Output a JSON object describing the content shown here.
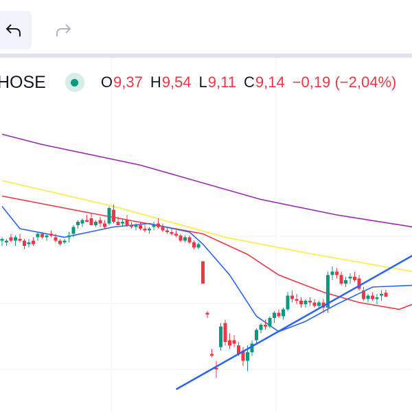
{
  "toolbar": {
    "undo_icon": "undo-arrow-icon",
    "redo_icon": "redo-arrow-icon"
  },
  "legend": {
    "symbol": "HOSE",
    "status_icon": "market-open-dot-icon",
    "open_label": "O",
    "open": "9,37",
    "high_label": "H",
    "high": "9,54",
    "low_label": "L",
    "low": "9,11",
    "close_label": "C",
    "close": "9,14",
    "change": "−0,19 (−2,04%)"
  },
  "colors": {
    "up": "#089981",
    "down": "#f23645",
    "ma_purple": "#9c27b0",
    "ma_yellow": "#ffeb3b",
    "ma_red": "#f23645",
    "ma_blue": "#2962ff",
    "trendline": "#2962ff"
  },
  "chart_data": {
    "type": "candlestick",
    "title": "HOSE",
    "candles": [
      [
        0,
        12.4,
        12.6,
        12.1,
        12.5
      ],
      [
        1,
        12.3,
        12.5,
        12.1,
        12.4
      ],
      [
        2,
        12.6,
        12.8,
        12.3,
        12.4
      ],
      [
        3,
        12.4,
        12.7,
        12.1,
        12.6
      ],
      [
        4,
        12.5,
        12.8,
        12.3,
        12.4
      ],
      [
        5,
        12.4,
        12.5,
        11.9,
        12.1
      ],
      [
        6,
        12.2,
        12.5,
        12.0,
        12.3
      ],
      [
        7,
        12.4,
        12.6,
        12.1,
        12.2
      ],
      [
        8,
        12.6,
        12.9,
        12.4,
        12.8
      ],
      [
        9,
        12.8,
        12.9,
        12.5,
        12.6
      ],
      [
        10,
        12.6,
        12.8,
        12.4,
        12.7
      ],
      [
        11,
        12.8,
        13.0,
        12.6,
        12.7
      ],
      [
        12,
        12.6,
        12.8,
        12.3,
        12.4
      ],
      [
        13,
        12.4,
        12.5,
        12.1,
        12.2
      ],
      [
        14,
        12.3,
        12.5,
        12.2,
        12.4
      ],
      [
        15,
        12.6,
        12.9,
        12.3,
        12.7
      ],
      [
        16,
        12.8,
        13.3,
        12.6,
        13.2
      ],
      [
        17,
        13.3,
        13.6,
        13.1,
        13.5
      ],
      [
        18,
        13.4,
        13.7,
        13.2,
        13.6
      ],
      [
        19,
        13.6,
        13.9,
        13.5,
        13.5
      ],
      [
        20,
        13.7,
        14.0,
        13.3,
        13.3
      ],
      [
        21,
        13.3,
        13.6,
        13.2,
        13.5
      ],
      [
        22,
        13.6,
        13.8,
        13.2,
        13.4
      ],
      [
        23,
        13.4,
        13.6,
        13.1,
        13.2
      ],
      [
        24,
        13.4,
        14.4,
        13.3,
        14.3
      ],
      [
        25,
        14.2,
        14.5,
        13.4,
        13.5
      ],
      [
        26,
        13.5,
        13.8,
        13.3,
        13.3
      ],
      [
        27,
        13.4,
        13.7,
        13.2,
        13.5
      ],
      [
        28,
        13.6,
        13.9,
        13.2,
        13.3
      ],
      [
        29,
        13.3,
        13.5,
        13.1,
        13.2
      ],
      [
        30,
        13.2,
        13.4,
        13.0,
        13.3
      ],
      [
        31,
        13.3,
        13.5,
        13.0,
        13.1
      ],
      [
        32,
        13.1,
        13.3,
        12.9,
        13.0
      ],
      [
        33,
        13.0,
        13.2,
        12.8,
        13.1
      ],
      [
        34,
        13.2,
        13.5,
        13.0,
        13.3
      ],
      [
        35,
        13.4,
        13.7,
        13.1,
        13.2
      ],
      [
        36,
        13.2,
        13.4,
        12.9,
        13.0
      ],
      [
        37,
        13.0,
        13.2,
        12.8,
        12.9
      ],
      [
        38,
        12.9,
        13.1,
        12.7,
        12.8
      ],
      [
        39,
        12.8,
        13.0,
        12.6,
        12.7
      ],
      [
        40,
        12.7,
        12.8,
        12.3,
        12.4
      ],
      [
        41,
        12.4,
        12.7,
        12.3,
        12.6
      ],
      [
        42,
        12.6,
        12.7,
        12.2,
        12.3
      ],
      [
        43,
        12.3,
        12.4,
        11.9,
        12.0
      ],
      [
        44,
        12.0,
        12.3,
        11.9,
        12.2
      ],
      [
        45,
        11.2,
        11.2,
        9.9,
        9.9
      ],
      [
        46,
        8.2,
        8.3,
        7.9,
        8.1
      ],
      [
        47,
        5.8,
        6.1,
        5.6,
        5.7
      ],
      [
        48,
        5.0,
        5.4,
        4.4,
        4.9
      ],
      [
        49,
        6.2,
        7.6,
        6.0,
        7.4
      ],
      [
        50,
        7.6,
        7.8,
        6.3,
        6.5
      ],
      [
        51,
        6.6,
        7.0,
        6.1,
        6.3
      ],
      [
        52,
        6.6,
        6.9,
        6.2,
        6.4
      ],
      [
        53,
        6.3,
        6.5,
        5.7,
        5.8
      ],
      [
        54,
        6.0,
        6.2,
        5.1,
        5.4
      ],
      [
        55,
        5.4,
        6.3,
        4.8,
        5.9
      ],
      [
        56,
        5.9,
        6.6,
        5.7,
        6.4
      ],
      [
        57,
        6.6,
        7.3,
        6.4,
        7.2
      ],
      [
        58,
        7.2,
        7.6,
        7.0,
        7.5
      ],
      [
        59,
        7.5,
        7.8,
        7.2,
        7.4
      ],
      [
        60,
        7.4,
        8.0,
        7.3,
        7.9
      ],
      [
        61,
        7.9,
        8.3,
        7.6,
        8.2
      ],
      [
        62,
        8.2,
        8.4,
        7.9,
        8.0
      ],
      [
        63,
        8.0,
        8.5,
        7.8,
        8.4
      ],
      [
        64,
        8.4,
        9.4,
        8.3,
        9.2
      ],
      [
        65,
        9.2,
        9.5,
        8.8,
        9.0
      ],
      [
        66,
        9.0,
        9.3,
        8.7,
        8.9
      ],
      [
        67,
        8.9,
        9.1,
        8.5,
        8.7
      ],
      [
        68,
        8.7,
        9.0,
        8.5,
        8.9
      ],
      [
        69,
        8.9,
        9.1,
        8.6,
        8.8
      ],
      [
        70,
        8.8,
        9.0,
        8.5,
        8.6
      ],
      [
        71,
        8.6,
        8.9,
        8.4,
        8.8
      ],
      [
        72,
        8.8,
        9.0,
        8.2,
        8.5
      ],
      [
        73,
        8.5,
        10.6,
        8.2,
        10.4
      ],
      [
        74,
        10.4,
        10.9,
        10.1,
        10.6
      ],
      [
        75,
        10.6,
        10.8,
        10.2,
        10.4
      ],
      [
        76,
        10.4,
        10.6,
        9.8,
        9.9
      ],
      [
        77,
        9.9,
        10.3,
        9.7,
        10.1
      ],
      [
        78,
        10.2,
        10.5,
        9.9,
        10.3
      ],
      [
        79,
        10.3,
        10.6,
        10.0,
        10.1
      ],
      [
        80,
        10.2,
        10.4,
        9.5,
        9.6
      ],
      [
        81,
        9.5,
        9.7,
        8.9,
        9.0
      ],
      [
        82,
        9.0,
        9.3,
        8.8,
        9.2
      ],
      [
        83,
        9.2,
        9.4,
        8.9,
        9.0
      ],
      [
        84,
        9.0,
        9.3,
        8.7,
        9.1
      ],
      [
        85,
        9.2,
        9.5,
        8.9,
        9.3
      ],
      [
        86,
        9.37,
        9.54,
        9.11,
        9.14
      ]
    ],
    "moving_averages": [
      {
        "name": "MA purple",
        "color": "#9c27b0",
        "points": [
          [
            0,
            18.6
          ],
          [
            9,
            18.0
          ],
          [
            31,
            16.8
          ],
          [
            58,
            14.8
          ],
          [
            75,
            13.9
          ],
          [
            92,
            13.2
          ]
        ]
      },
      {
        "name": "MA yellow",
        "color": "#ffeb3b",
        "points": [
          [
            0,
            15.9
          ],
          [
            25,
            14.4
          ],
          [
            50,
            12.6
          ],
          [
            70,
            11.6
          ],
          [
            92,
            10.6
          ]
        ]
      },
      {
        "name": "MA red",
        "color": "#f23645",
        "points": [
          [
            0,
            15.0
          ],
          [
            20,
            14.0
          ],
          [
            45,
            12.8
          ],
          [
            55,
            11.6
          ],
          [
            62,
            10.4
          ],
          [
            72,
            9.4
          ],
          [
            80,
            8.8
          ],
          [
            89,
            8.4
          ],
          [
            92,
            8.7
          ]
        ]
      },
      {
        "name": "MA blue",
        "color": "#2962ff",
        "points": [
          [
            0,
            14.4
          ],
          [
            4,
            13.1
          ],
          [
            14,
            12.6
          ],
          [
            25,
            13.2
          ],
          [
            33,
            13.4
          ],
          [
            42,
            12.9
          ],
          [
            45,
            12.2
          ],
          [
            51,
            10.4
          ],
          [
            57,
            8.0
          ],
          [
            62,
            7.1
          ],
          [
            68,
            7.7
          ],
          [
            75,
            8.7
          ],
          [
            83,
            9.7
          ],
          [
            92,
            9.8
          ]
        ]
      }
    ],
    "trendline": {
      "from": [
        39,
        3.74
      ],
      "to": [
        92,
        11.54
      ]
    },
    "grid": true
  }
}
